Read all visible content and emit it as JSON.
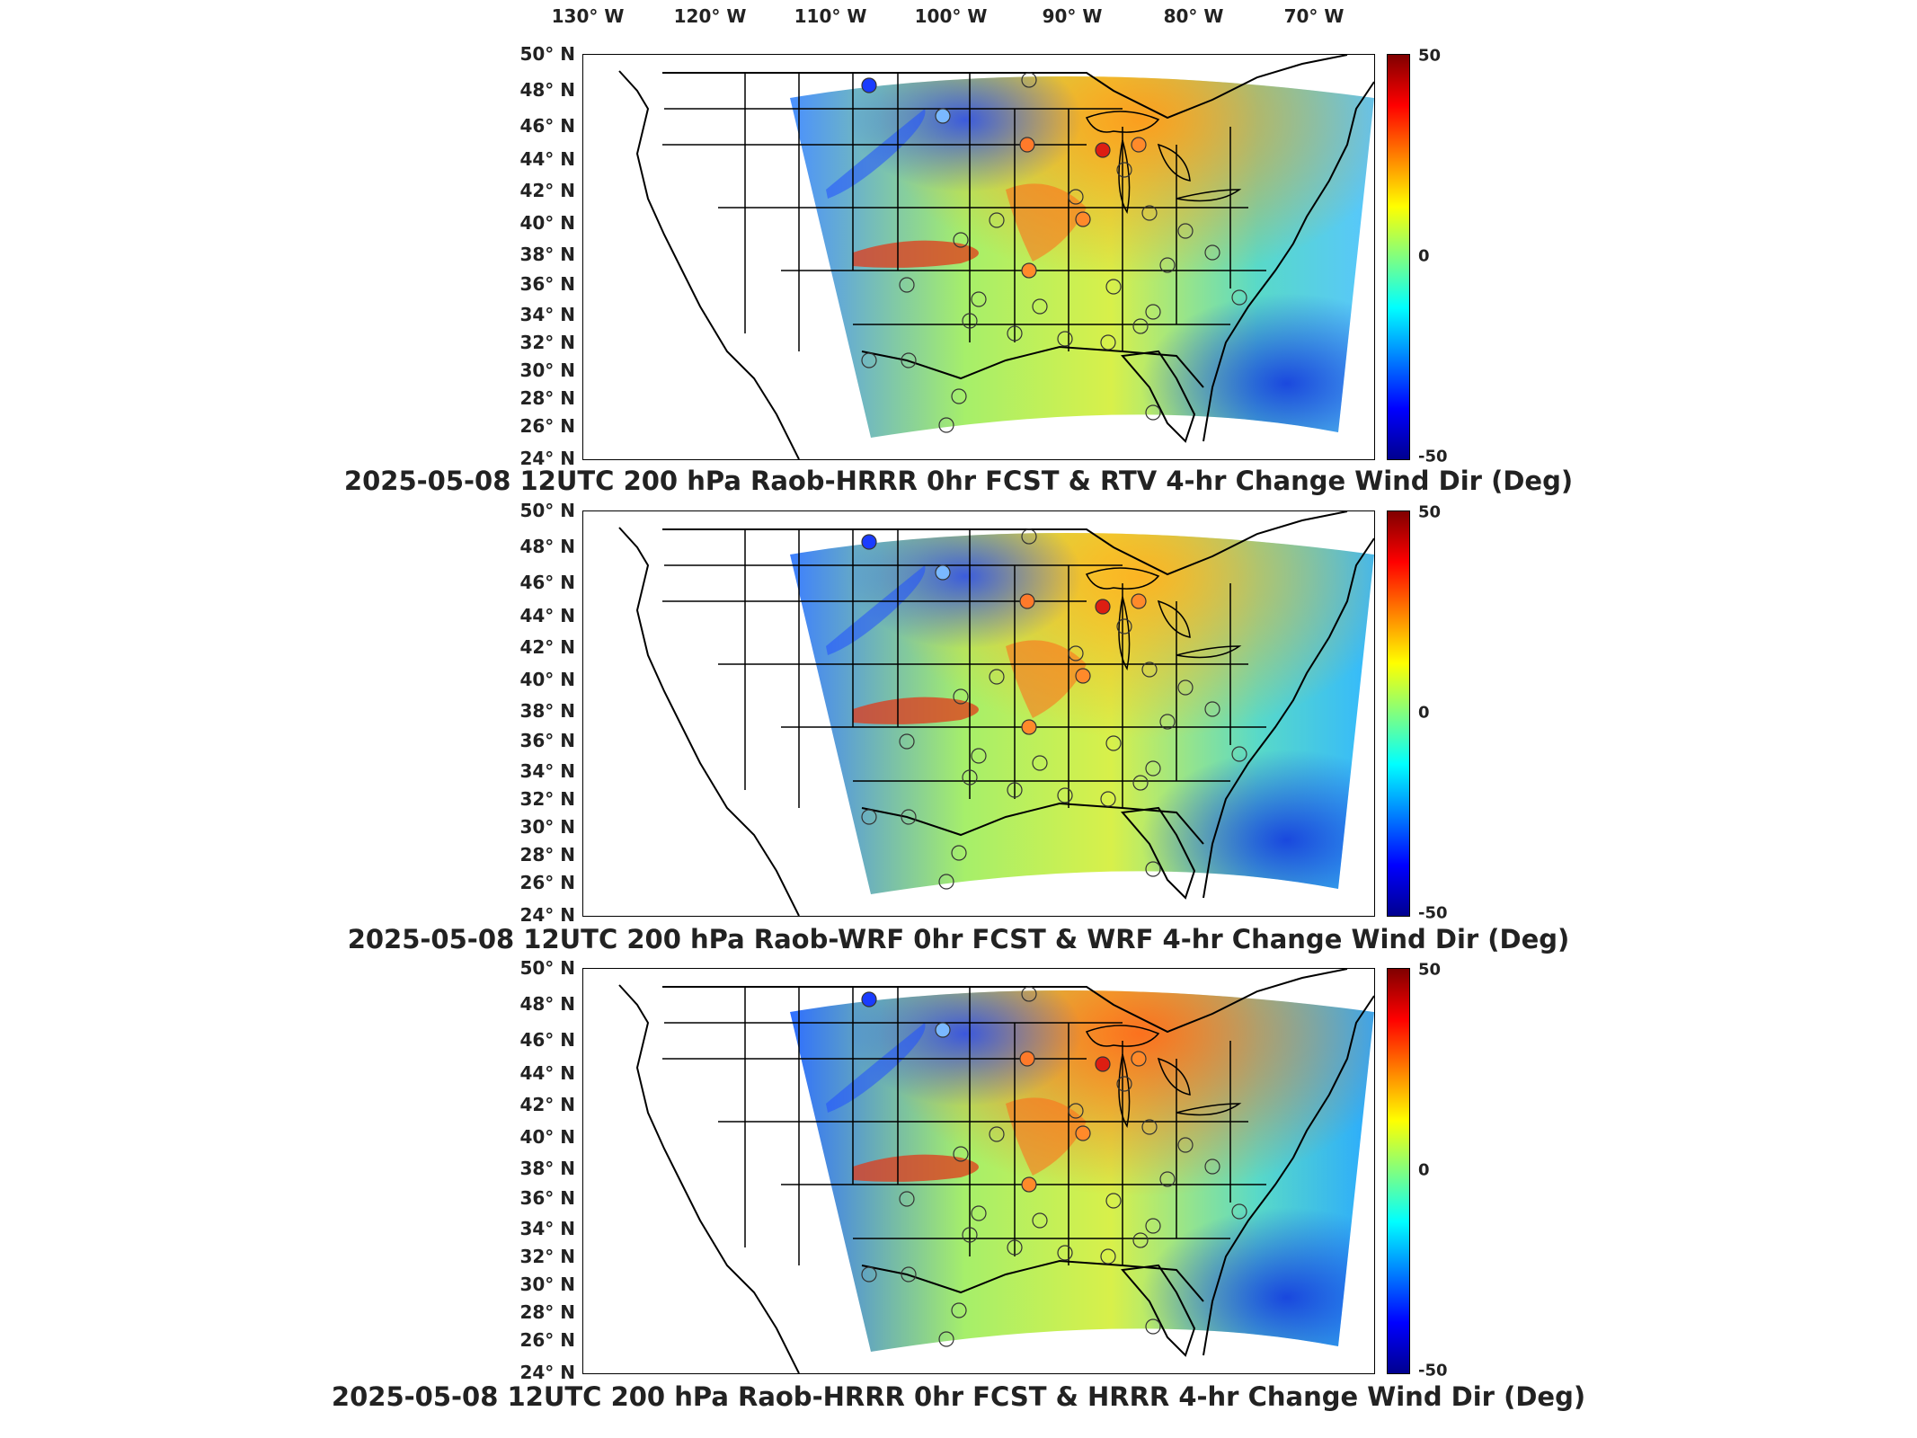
{
  "top_axis": {
    "lon_labels": [
      "130° W",
      "120° W",
      "110° W",
      "100° W",
      "90° W",
      "80° W",
      "70° W"
    ]
  },
  "lat_labels": [
    "50° N",
    "48° N",
    "46° N",
    "44° N",
    "42° N",
    "40° N",
    "38° N",
    "36° N",
    "34° N",
    "32° N",
    "30° N",
    "28° N",
    "26° N",
    "24° N"
  ],
  "colorbar": {
    "max": "50",
    "mid": "0",
    "min": "-50",
    "colors": [
      "#00008f",
      "#0000ff",
      "#0080ff",
      "#00ffff",
      "#80ff80",
      "#ffff00",
      "#ff8000",
      "#ff0000",
      "#800000"
    ]
  },
  "panels": [
    {
      "title": "2025-05-08 12UTC 200 hPa Raob-HRRR 0hr FCST & RTV 4-hr Change Wind Dir (Deg)"
    },
    {
      "title": "2025-05-08 12UTC 200 hPa Raob-WRF 0hr FCST & WRF 4-hr Change Wind Dir (Deg)"
    },
    {
      "title": "2025-05-08 12UTC 200 hPa Raob-HRRR 0hr FCST & HRRR 4-hr Change Wind Dir (Deg)"
    }
  ]
}
